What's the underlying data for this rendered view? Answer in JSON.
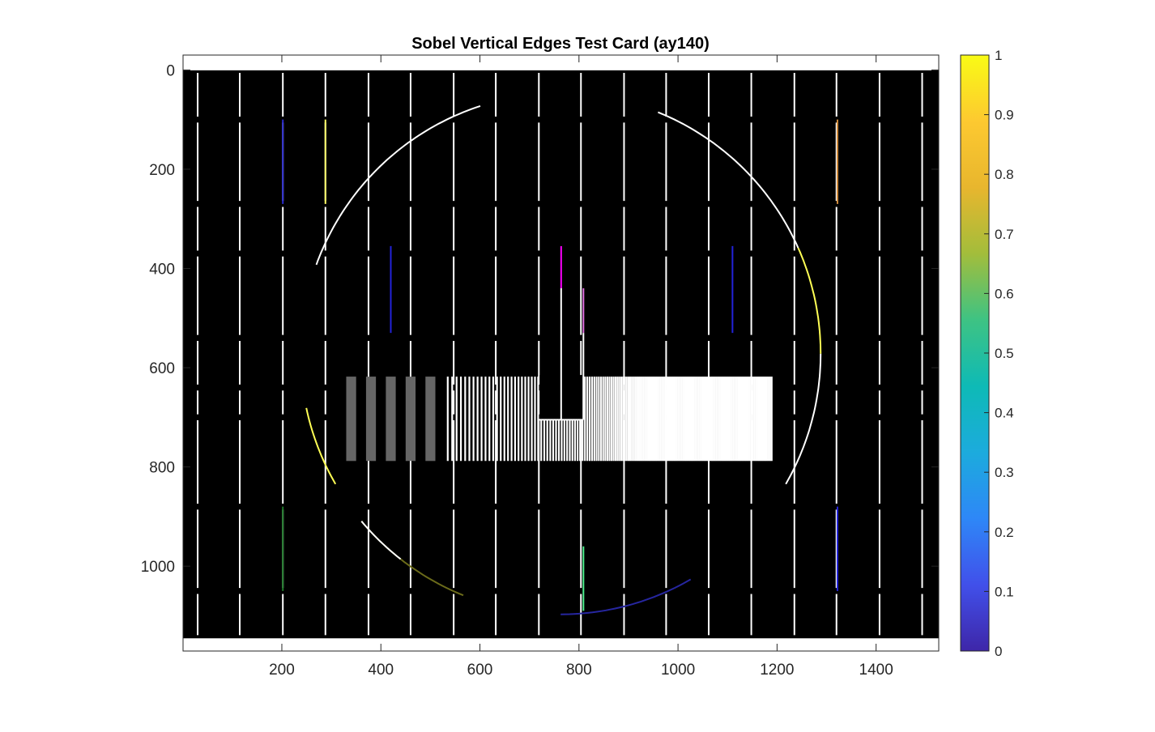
{
  "chart_data": {
    "type": "heatmap",
    "title": "Sobel Vertical Edges Test Card (ay140)",
    "xlabel": "",
    "ylabel": "",
    "xlim": [
      0.5,
      1526.5
    ],
    "ylim": [
      1171,
      -30
    ],
    "image_extent": {
      "x": [
        0.5,
        1526.5
      ],
      "y": [
        0.5,
        1145.5
      ]
    },
    "xticks": [
      200,
      400,
      600,
      800,
      1000,
      1200,
      1400
    ],
    "yticks": [
      0,
      200,
      400,
      600,
      800,
      1000
    ],
    "y_reversed": true,
    "grid": false,
    "background_value": 0,
    "colorbar": {
      "location": "right",
      "clim": [
        0,
        1
      ],
      "ticks": [
        0,
        0.1,
        0.2,
        0.3,
        0.4,
        0.5,
        0.6,
        0.7,
        0.8,
        0.9,
        1
      ],
      "colormap": [
        "#3e26a8",
        "#4150ea",
        "#2e87f7",
        "#1cabdd",
        "#0ebab6",
        "#3ec383",
        "#a3bd3b",
        "#e8b62e",
        "#fdc930",
        "#f9fb15"
      ]
    },
    "grid_lines": {
      "x": [
        30,
        115,
        202,
        288,
        375,
        460,
        547,
        632,
        719,
        804,
        891,
        976,
        1062,
        1148,
        1235,
        1320,
        1407,
        1493
      ],
      "y_row_starts": [
        0,
        100,
        270,
        370,
        540,
        640,
        700,
        880,
        1050,
        1145
      ],
      "value": 1,
      "color": "#ffffff"
    },
    "colored_edges": [
      {
        "x": 202,
        "y0": 100,
        "y1": 270,
        "value": 0.05,
        "color": "#2a2ad0"
      },
      {
        "x": 288,
        "y0": 100,
        "y1": 270,
        "value": 0.95,
        "color": "#ffff66"
      },
      {
        "x": 1322,
        "y0": 100,
        "y1": 270,
        "value": 0.82,
        "color": "#d08a3a"
      },
      {
        "x": 420,
        "y0": 355,
        "y1": 530,
        "value": 0.05,
        "color": "#2323d8"
      },
      {
        "x": 1110,
        "y0": 355,
        "y1": 530,
        "value": 0.05,
        "color": "#2323d8"
      },
      {
        "x": 764,
        "y0": 355,
        "y1": 440,
        "value": 1,
        "color": "#ff00ff"
      },
      {
        "x": 809,
        "y0": 440,
        "y1": 530,
        "value": 1,
        "color": "#e070e0"
      },
      {
        "x": 202,
        "y0": 880,
        "y1": 1050,
        "value": 0.62,
        "color": "#1f7a2a"
      },
      {
        "x": 1322,
        "y0": 880,
        "y1": 1050,
        "value": 0.05,
        "color": "#2323d8"
      },
      {
        "x": 809,
        "y0": 960,
        "y1": 1090,
        "value": 0.6,
        "color": "#4ef08e"
      }
    ],
    "circle": {
      "cx": 763,
      "cy": 572,
      "r": 525
    },
    "resolution_bars": {
      "y0": 618,
      "y1": 788,
      "coarse_x0": 330,
      "coarse_x1": 510,
      "coarse_count": 5,
      "coarse_value": 0.4,
      "fine_x0": 535,
      "fine_x1": 1190,
      "notch": {
        "x0": 719,
        "x1": 809,
        "y": 705
      }
    }
  }
}
